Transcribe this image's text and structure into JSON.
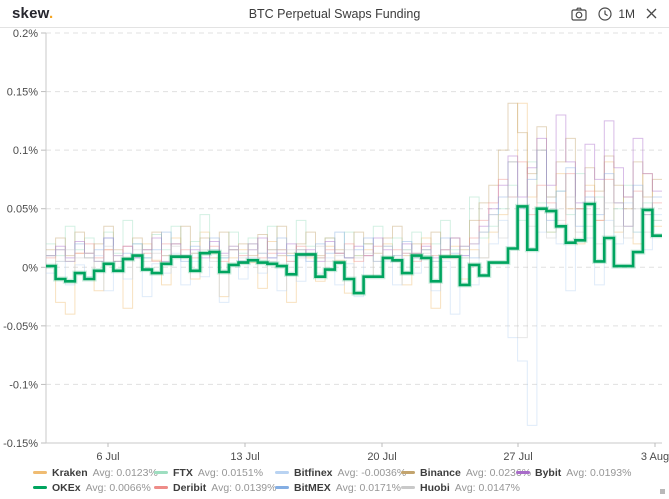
{
  "header": {
    "logo_text": "skew",
    "logo_dot": ".",
    "title": "BTC Perpetual Swaps Funding",
    "interval_label": "1M",
    "icons": [
      "camera-icon",
      "clock-icon",
      "close-icon"
    ]
  },
  "chart_data": {
    "type": "line",
    "step": true,
    "title": "BTC Perpetual Swaps Funding",
    "unit": "%",
    "grid": "horizontal-dashed",
    "legend_position": "bottom",
    "ylim": [
      -0.15,
      0.2
    ],
    "y_ticks": [
      "0.2%",
      "0.15%",
      "0.1%",
      "0.05%",
      "0%",
      "-0.05%",
      "-0.1%",
      "-0.15%"
    ],
    "y_tick_values": [
      0.2,
      0.15,
      0.1,
      0.05,
      0,
      -0.05,
      -0.1,
      -0.15
    ],
    "x_ticks": [
      "6 Jul",
      "13 Jul",
      "20 Jul",
      "27 Jul",
      "3 Aug"
    ],
    "series": [
      {
        "name": "Kraken",
        "avg_label": "Avg: 0.0123%",
        "color": "#f0bc72",
        "emphasis": false,
        "legend_row": 1,
        "values": [
          0.01,
          -0.03,
          -0.04,
          0.012,
          0.008,
          -0.02,
          0.015,
          0.005,
          -0.035,
          0.01,
          0.02,
          0.006,
          -0.015,
          0.025,
          0.01,
          -0.01,
          0.03,
          0.012,
          -0.025,
          0.008,
          0.015,
          0.004,
          -0.018,
          0.022,
          0.01,
          -0.03,
          0.015,
          0.008,
          -0.012,
          0.018,
          0.006,
          -0.022,
          0.01,
          0.015,
          -0.008,
          0.02,
          0.005,
          -0.015,
          0.012,
          0.025,
          -0.035,
          0.01,
          0.018,
          -0.01,
          0.015,
          0.008,
          0.03,
          0.045,
          0.09,
          0.14,
          0.06,
          0.1,
          0.03,
          0.08,
          0.05,
          0.02,
          0.07,
          0.04,
          0.09,
          0.03,
          0.06,
          0.02,
          0.08,
          0.035
        ]
      },
      {
        "name": "FTX",
        "avg_label": "Avg: 0.0151%",
        "color": "#9edec0",
        "emphasis": false,
        "legend_row": 1,
        "values": [
          0.02,
          0.01,
          0.035,
          0.015,
          0.025,
          0.005,
          0.03,
          0.012,
          0.04,
          0.02,
          0.008,
          0.028,
          0.015,
          0.035,
          0.01,
          0.022,
          0.045,
          0.015,
          0.008,
          0.03,
          0.012,
          0.025,
          0.006,
          0.035,
          0.015,
          0.01,
          0.04,
          0.018,
          0.008,
          0.025,
          0.012,
          0.03,
          0.01,
          0.02,
          0.035,
          0.008,
          0.025,
          0.015,
          0.03,
          0.01,
          0.02,
          0.04,
          0.015,
          0.008,
          0.06,
          0.025,
          0.035,
          0.05,
          0.07,
          0.04,
          0.09,
          0.055,
          0.03,
          0.065,
          0.045,
          0.08,
          0.035,
          0.06,
          0.025,
          0.05,
          0.07,
          0.03,
          0.055,
          0.04
        ]
      },
      {
        "name": "Bitfinex",
        "avg_label": "Avg: -0.0036%",
        "color": "#b9d3f2",
        "emphasis": false,
        "legend_row": 1,
        "values": [
          -0.005,
          0.005,
          -0.015,
          0.002,
          -0.008,
          0.01,
          -0.02,
          0.005,
          -0.01,
          0.008,
          -0.025,
          0.003,
          -0.005,
          0.012,
          -0.015,
          0.005,
          -0.008,
          0.015,
          -0.03,
          0.002,
          -0.01,
          0.008,
          -0.005,
          0.015,
          -0.02,
          0.005,
          -0.012,
          0.01,
          -0.005,
          0.008,
          -0.015,
          0.003,
          -0.025,
          0.01,
          -0.008,
          0.005,
          -0.015,
          0.012,
          -0.005,
          0.008,
          -0.02,
          0.005,
          -0.04,
          0.01,
          -0.015,
          0.008,
          0.02,
          0.04,
          -0.06,
          -0.08,
          -0.135,
          0.03,
          0.06,
          0.02,
          -0.02,
          0.05,
          0.025,
          -0.015,
          0.04,
          0.02,
          0.055,
          0.03,
          0.015,
          0.045
        ]
      },
      {
        "name": "Binance",
        "avg_label": "Avg: 0.0236%",
        "color": "#c3a46e",
        "emphasis": false,
        "legend_row": 1,
        "values": [
          0.015,
          0.025,
          0.01,
          0.03,
          0.012,
          0.02,
          0.035,
          0.015,
          0.008,
          0.025,
          0.015,
          0.03,
          0.01,
          0.02,
          0.035,
          0.012,
          0.025,
          0.008,
          0.03,
          0.015,
          0.02,
          0.01,
          0.028,
          0.015,
          0.035,
          0.012,
          0.02,
          0.03,
          0.01,
          0.025,
          0.015,
          0.008,
          0.03,
          0.02,
          0.012,
          0.025,
          0.035,
          0.01,
          0.02,
          0.015,
          0.03,
          0.008,
          0.025,
          0.015,
          0.04,
          0.055,
          0.07,
          0.1,
          0.14,
          0.115,
          0.08,
          0.12,
          0.06,
          0.09,
          0.11,
          0.05,
          0.085,
          0.065,
          0.095,
          0.07,
          0.05,
          0.09,
          0.06,
          0.075
        ]
      },
      {
        "name": "Bybit",
        "avg_label": "Avg: 0.0193%",
        "color": "#a86bc9",
        "emphasis": false,
        "legend_row": 1,
        "values": [
          0.01,
          0.018,
          0.008,
          0.022,
          0.012,
          0.005,
          0.025,
          0.01,
          0.018,
          0.008,
          0.015,
          0.025,
          0.005,
          0.02,
          0.01,
          0.015,
          0.008,
          0.022,
          0.012,
          0.018,
          0.005,
          0.015,
          0.025,
          0.008,
          0.012,
          0.02,
          0.01,
          0.015,
          0.005,
          0.022,
          0.012,
          0.008,
          0.018,
          0.01,
          0.025,
          0.015,
          0.005,
          0.02,
          0.012,
          0.018,
          0.008,
          0.015,
          0.025,
          0.01,
          0.02,
          0.035,
          0.05,
          0.07,
          0.095,
          0.06,
          0.085,
          0.11,
          0.07,
          0.13,
          0.09,
          0.055,
          0.105,
          0.075,
          0.125,
          0.085,
          0.06,
          0.11,
          0.08,
          0.065
        ]
      },
      {
        "name": "OKEx",
        "avg_label": "Avg: 0.0066%",
        "color": "#00a45f",
        "emphasis": true,
        "legend_row": 2,
        "values": [
          0.001,
          -0.01,
          -0.012,
          -0.005,
          -0.01,
          -0.003,
          0.003,
          -0.003,
          0.007,
          0.01,
          -0.002,
          -0.005,
          0.003,
          0.009,
          0.009,
          -0.003,
          0.012,
          0.013,
          -0.004,
          0.002,
          0.004,
          0.006,
          0.004,
          0.003,
          0.001,
          -0.006,
          0.011,
          0.011,
          -0.008,
          -0.002,
          0.004,
          -0.01,
          -0.022,
          -0.008,
          -0.008,
          0.008,
          0.006,
          -0.005,
          0.01,
          0.008,
          -0.012,
          0.009,
          0.009,
          -0.015,
          0.002,
          -0.007,
          0.004,
          0.004,
          0.016,
          0.052,
          0.015,
          0.05,
          0.048,
          0.035,
          0.021,
          0.023,
          0.054,
          0.005,
          0.025,
          0.001,
          0.001,
          0.013,
          0.049,
          0.027
        ]
      },
      {
        "name": "Deribit",
        "avg_label": "Avg: 0.0139%",
        "color": "#ee8c88",
        "emphasis": false,
        "legend_row": 2,
        "values": [
          0.008,
          0.015,
          0.005,
          0.012,
          0.02,
          0.008,
          0.015,
          0.005,
          0.018,
          0.01,
          0.012,
          0.005,
          0.02,
          0.01,
          0.015,
          0.008,
          0.012,
          0.018,
          0.005,
          0.015,
          0.01,
          0.02,
          0.008,
          0.012,
          0.015,
          0.005,
          0.018,
          0.01,
          0.008,
          0.015,
          0.012,
          0.02,
          0.005,
          0.01,
          0.018,
          0.008,
          0.015,
          0.012,
          0.005,
          0.02,
          0.01,
          0.015,
          0.008,
          0.018,
          0.025,
          0.04,
          0.055,
          0.075,
          0.06,
          0.09,
          0.045,
          0.07,
          0.055,
          0.035,
          0.08,
          0.05,
          0.065,
          0.04,
          0.075,
          0.055,
          0.035,
          0.065,
          0.045,
          0.055
        ]
      },
      {
        "name": "BitMEX",
        "avg_label": "Avg: 0.0171%",
        "color": "#84aee3",
        "emphasis": false,
        "legend_row": 2,
        "values": [
          0.01,
          0.015,
          0.005,
          0.02,
          0.008,
          0.015,
          0.025,
          0.005,
          0.012,
          0.02,
          0.008,
          0.015,
          0.03,
          0.01,
          0.005,
          0.018,
          0.012,
          0.025,
          0.008,
          0.015,
          0.005,
          0.02,
          0.012,
          0.008,
          0.025,
          0.01,
          0.015,
          0.005,
          0.02,
          0.012,
          0.03,
          0.008,
          0.015,
          0.025,
          0.005,
          0.018,
          0.01,
          0.022,
          0.008,
          0.015,
          0.005,
          0.025,
          0.012,
          0.018,
          0.008,
          0.03,
          0.045,
          0.06,
          0.09,
          0.05,
          0.075,
          0.1,
          0.04,
          0.065,
          0.085,
          0.035,
          0.06,
          0.045,
          0.08,
          0.055,
          0.035,
          0.07,
          0.045,
          0.06
        ]
      },
      {
        "name": "Huobi",
        "avg_label": "Avg: 0.0147%",
        "color": "#c9c9c9",
        "emphasis": false,
        "legend_row": 2,
        "values": [
          0.01,
          0.005,
          0.015,
          0.008,
          0.012,
          0.005,
          0.018,
          0.01,
          0.008,
          0.015,
          0.005,
          0.012,
          0.01,
          0.018,
          0.008,
          0.012,
          0.015,
          0.005,
          0.01,
          0.018,
          0.008,
          0.015,
          0.012,
          0.005,
          0.01,
          0.015,
          0.008,
          0.012,
          0.018,
          0.005,
          0.01,
          0.015,
          0.008,
          0.012,
          0.005,
          0.018,
          0.01,
          0.015,
          0.008,
          0.012,
          0.005,
          0.015,
          0.01,
          0.008,
          0.02,
          0.03,
          0.045,
          0.025,
          0.06,
          -0.06,
          0.035,
          0.05,
          0.025,
          0.04,
          0.06,
          0.03,
          0.045,
          0.02,
          0.055,
          0.035,
          0.025,
          0.05,
          0.03,
          0.04
        ]
      }
    ]
  }
}
